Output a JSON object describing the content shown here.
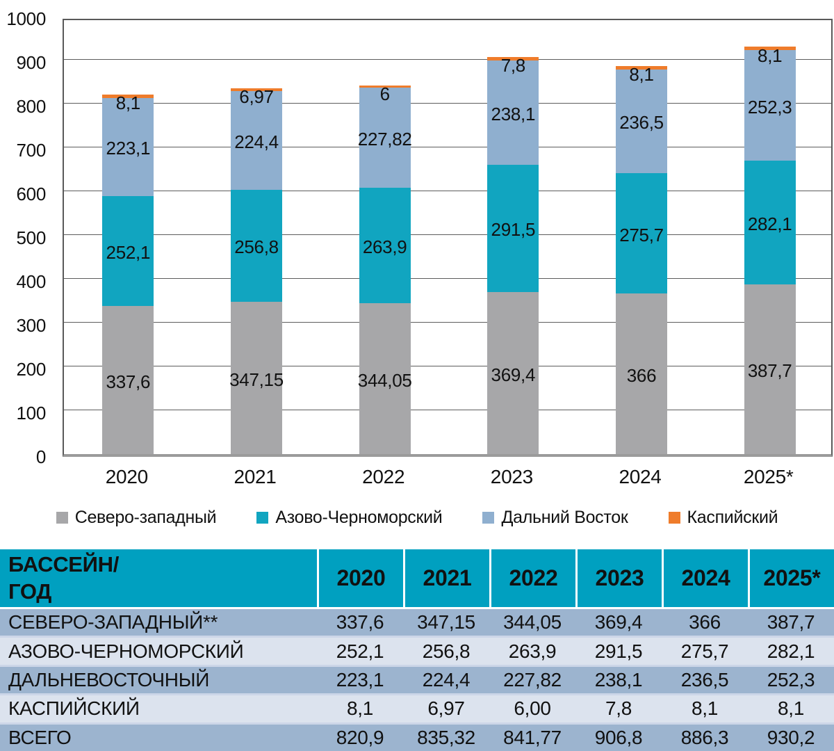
{
  "colors": {
    "series_gray": "#a7a7a9",
    "series_teal": "#11a5c0",
    "series_blue": "#8fafcf",
    "series_orange": "#ef7c2b",
    "table_header_bg": "#00a0c0",
    "table_row_dark": "#9cb4cf",
    "table_row_light": "#dce3ee",
    "row_separator": "#ccd6e8",
    "grid_line": "#5c5c5c",
    "axis_line": "#9b9b9b",
    "text": "#111111"
  },
  "chart_data": {
    "type": "bar",
    "stacked": true,
    "title": "",
    "xlabel": "",
    "ylabel": "",
    "categories": [
      "2020",
      "2021",
      "2022",
      "2023",
      "2024",
      "2025*"
    ],
    "series": [
      {
        "name": "Северо-западный",
        "color_key": "series_gray",
        "values": [
          337.6,
          347.15,
          344.05,
          369.4,
          366,
          387.7
        ],
        "value_labels": [
          "337,6",
          "347,15",
          "344,05",
          "369,4",
          "366",
          "387,7"
        ]
      },
      {
        "name": "Азово-Черноморский",
        "color_key": "series_teal",
        "values": [
          252.1,
          256.8,
          263.9,
          291.5,
          275.7,
          282.1
        ],
        "value_labels": [
          "252,1",
          "256,8",
          "263,9",
          "291,5",
          "275,7",
          "282,1"
        ]
      },
      {
        "name": "Дальний Восток",
        "color_key": "series_blue",
        "values": [
          223.1,
          224.4,
          227.82,
          238.1,
          236.5,
          252.3
        ],
        "value_labels": [
          "223,1",
          "224,4",
          "227,82",
          "238,1",
          "236,5",
          "252,3"
        ]
      },
      {
        "name": "Каспийский",
        "color_key": "series_orange",
        "values": [
          8.1,
          6.97,
          6,
          7.8,
          8.1,
          8.1
        ],
        "value_labels": [
          "8,1",
          "6,97",
          "6",
          "7,8",
          "8,1",
          "8,1"
        ]
      }
    ],
    "totals": [
      820.9,
      835.32,
      841.77,
      906.8,
      886.3,
      930.2
    ],
    "ylim": [
      0,
      1000
    ],
    "yticks": [
      0,
      100,
      200,
      300,
      400,
      500,
      600,
      700,
      800,
      900,
      1000
    ],
    "grid": true,
    "legend_position": "bottom"
  },
  "table": {
    "header": {
      "col0_line1": "БАССЕЙН/",
      "col0_line2": "ГОД",
      "years": [
        "2020",
        "2021",
        "2022",
        "2023",
        "2024",
        "2025*"
      ]
    },
    "rows": [
      {
        "label": "СЕВЕРО-ЗАПАДНЫЙ**",
        "shade": "dark",
        "values": [
          "337,6",
          "347,15",
          "344,05",
          "369,4",
          "366",
          "387,7"
        ]
      },
      {
        "label": "АЗОВО-ЧЕРНОМОРСКИЙ",
        "shade": "light",
        "values": [
          "252,1",
          "256,8",
          "263,9",
          "291,5",
          "275,7",
          "282,1"
        ]
      },
      {
        "label": "ДАЛЬНЕВОСТОЧНЫЙ",
        "shade": "dark",
        "values": [
          "223,1",
          "224,4",
          "227,82",
          "238,1",
          "236,5",
          "252,3"
        ]
      },
      {
        "label": "КАСПИЙСКИЙ",
        "shade": "light",
        "values": [
          "8,1",
          "6,97",
          "6,00",
          "7,8",
          "8,1",
          "8,1"
        ]
      },
      {
        "label": "ВСЕГО",
        "shade": "dark",
        "values": [
          "820,9",
          "835,32",
          "841,77",
          "906,8",
          "886,3",
          "930,2"
        ]
      }
    ]
  }
}
